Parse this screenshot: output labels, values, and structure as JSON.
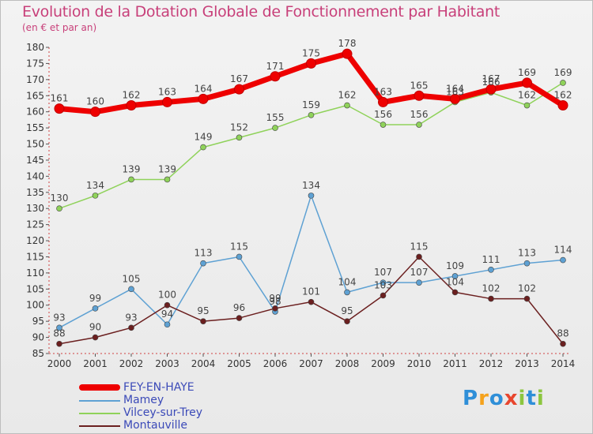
{
  "title": "Evolution de la Dotation Globale de Fonctionnement par Habitant",
  "subtitle": "(en € et par an)",
  "brand": {
    "p": "P",
    "r": "r",
    "o": "o",
    "x": "x",
    "i1": "i",
    "t": "t",
    "i2": "i"
  },
  "colors": {
    "title": "#c8407a",
    "legend_text": "#3b4ab8",
    "fey": "#ee0000",
    "mamey": "#5ea1d3",
    "vilcey": "#8fd25a",
    "montauville": "#6b1f1f"
  },
  "chart_data": {
    "type": "line",
    "title": "Evolution de la Dotation Globale de Fonctionnement par Habitant",
    "ylabel": "(en € et par an)",
    "xlabel": "",
    "x": [
      "2000",
      "2001",
      "2002",
      "2003",
      "2004",
      "2005",
      "2006",
      "2007",
      "2008",
      "2009",
      "2010",
      "2011",
      "2012",
      "2013",
      "2014"
    ],
    "ylim": [
      85,
      180
    ],
    "yticks": [
      85,
      90,
      95,
      100,
      105,
      110,
      115,
      120,
      125,
      130,
      135,
      140,
      145,
      150,
      155,
      160,
      165,
      170,
      175,
      180
    ],
    "grid": false,
    "legend": "bottom-left",
    "series": [
      {
        "name": "FEY-EN-HAYE",
        "color": "#ee0000",
        "values": [
          161,
          160,
          162,
          163,
          164,
          167,
          171,
          175,
          178,
          163,
          165,
          164,
          167,
          169,
          162
        ]
      },
      {
        "name": "Mamey",
        "color": "#5ea1d3",
        "values": [
          93,
          99,
          105,
          94,
          113,
          115,
          98,
          134,
          104,
          107,
          107,
          109,
          111,
          113,
          114
        ]
      },
      {
        "name": "Vilcey-sur-Trey",
        "color": "#8fd25a",
        "values": [
          130,
          134,
          139,
          139,
          149,
          152,
          155,
          159,
          162,
          156,
          156,
          163,
          166,
          162,
          169
        ]
      },
      {
        "name": "Montauville",
        "color": "#6b1f1f",
        "values": [
          88,
          90,
          93,
          100,
          95,
          96,
          99,
          101,
          95,
          103,
          115,
          104,
          102,
          102,
          88
        ]
      }
    ]
  }
}
